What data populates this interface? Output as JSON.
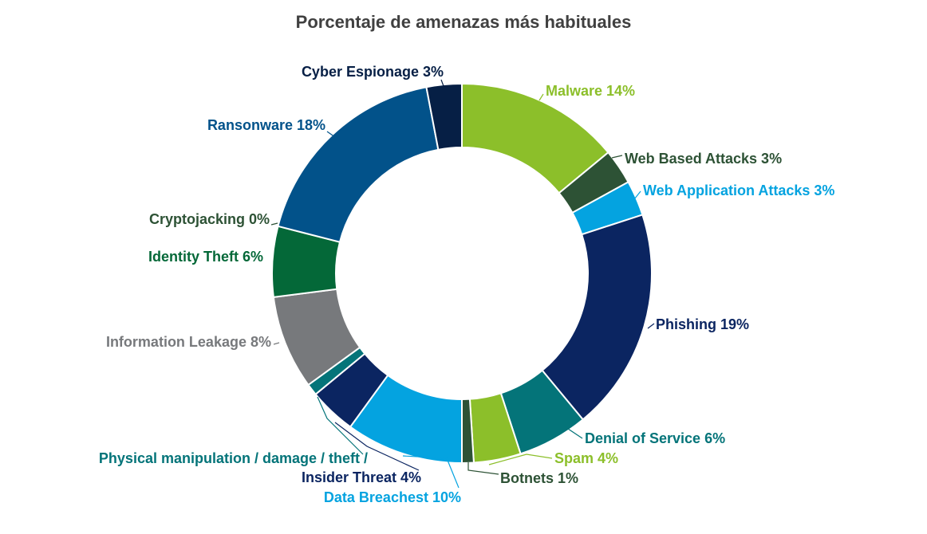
{
  "chart_data": {
    "type": "pie",
    "donut": true,
    "title": "Porcentaje de amenazas más habituales",
    "unit": "%",
    "slices": [
      {
        "label": "Malware 14%",
        "value": 14,
        "color": "#8cbf2a"
      },
      {
        "label": "Web Based Attacks 3%",
        "value": 3,
        "color": "#2d5235"
      },
      {
        "label": "Web Application Attacks 3%",
        "value": 3,
        "color": "#04a3e0"
      },
      {
        "label": "Phishing 19%",
        "value": 19,
        "color": "#0b2561"
      },
      {
        "label": "Denial of Service 6%",
        "value": 6,
        "color": "#047479"
      },
      {
        "label": "Spam 4%",
        "value": 4,
        "color": "#8cbf2a"
      },
      {
        "label": "Botnets 1%",
        "value": 1,
        "color": "#2d5235"
      },
      {
        "label": "Data Breachest 10%",
        "value": 10,
        "color": "#04a3e0"
      },
      {
        "label": "Insider Threat 4%",
        "value": 4,
        "color": "#0b2561"
      },
      {
        "label": "Physical manipulation / damage / theft /",
        "value": 1,
        "color": "#047479"
      },
      {
        "label": "Information Leakage 8%",
        "value": 8,
        "color": "#77797c"
      },
      {
        "label": "Identity Theft 6%",
        "value": 6,
        "color": "#046838"
      },
      {
        "label": "Cryptojacking 0%",
        "value": 0,
        "color": "#2d5235"
      },
      {
        "label": "Ransonware 18%",
        "value": 18,
        "color": "#02528a"
      },
      {
        "label": "Cyber Espionage 3%",
        "value": 3,
        "color": "#061f45"
      }
    ]
  }
}
